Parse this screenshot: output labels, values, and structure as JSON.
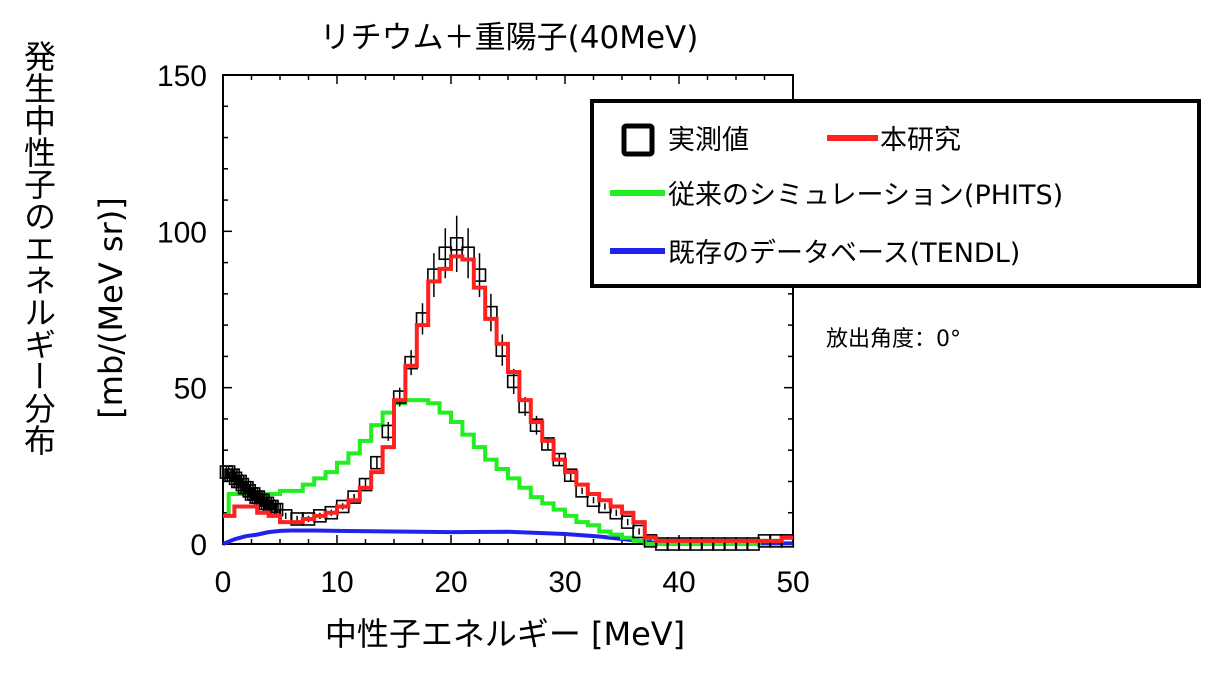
{
  "chart_data": {
    "type": "line",
    "title": "リチウム＋重陽子(40MeV)",
    "xlabel": "中性子エネルギー [MeV]",
    "ylabel_main": "発生中性子のエネルギー分布",
    "ylabel_unit": "[mb/(MeV sr)]",
    "xlim": [
      0,
      50
    ],
    "ylim": [
      0,
      150
    ],
    "x_ticks": [
      0,
      10,
      20,
      30,
      40,
      50
    ],
    "y_ticks": [
      0,
      50,
      100,
      150
    ],
    "x_tick_labels": [
      "0",
      "10",
      "20",
      "30",
      "40",
      "50"
    ],
    "y_tick_labels": [
      "0",
      "50",
      "100",
      "150"
    ],
    "grid": false,
    "legend_position": "top-right",
    "annotation": "放出角度：0°",
    "series": [
      {
        "name": "実測値",
        "kind": "markers",
        "marker": "square",
        "color": "#000000",
        "x": [
          0.3,
          0.5,
          0.7,
          0.9,
          1.1,
          1.3,
          1.5,
          1.7,
          1.9,
          2.1,
          2.3,
          2.5,
          2.7,
          2.9,
          3.1,
          3.3,
          3.5,
          3.7,
          3.9,
          4.1,
          4.3,
          4.5,
          4.7,
          5.5,
          6.5,
          7.5,
          8.5,
          9.5,
          10.5,
          11.5,
          12.5,
          13.5,
          14.5,
          15.5,
          16.5,
          17.5,
          18.5,
          19.5,
          20.5,
          21.5,
          22.5,
          23.5,
          24.5,
          25.5,
          26.5,
          27.5,
          28.5,
          29.5,
          30.5,
          31.5,
          32.5,
          33.5,
          34.5,
          35.5,
          36.5,
          37.5,
          38.5,
          39.5,
          40.5,
          41.5,
          42.5,
          43.5,
          44.5,
          45.5,
          46.5,
          47.5,
          48.5,
          49.5
        ],
        "y": [
          23,
          23,
          22,
          22,
          21,
          20,
          20,
          19,
          18,
          18,
          17,
          16,
          16,
          15,
          15,
          14,
          14,
          13,
          13,
          12,
          12,
          11,
          11,
          9,
          8,
          8,
          9,
          10,
          12,
          15,
          19,
          26,
          36,
          47,
          58,
          72,
          86,
          93,
          96,
          93,
          86,
          74,
          62,
          52,
          44,
          38,
          32,
          27,
          22,
          17,
          14,
          12,
          10,
          7,
          4,
          1,
          0,
          0,
          0,
          0,
          0,
          0,
          0,
          0,
          0,
          1,
          1,
          1
        ],
        "yerr": [
          2,
          2,
          2,
          2,
          2,
          2,
          2,
          2,
          2,
          2,
          2,
          2,
          2,
          2,
          2,
          2,
          2,
          2,
          2,
          2,
          2,
          2,
          2,
          1,
          1,
          1,
          1,
          1,
          1,
          1,
          2,
          2,
          3,
          3,
          4,
          5,
          7,
          8,
          9,
          8,
          7,
          6,
          5,
          4,
          3,
          3,
          2,
          2,
          2,
          1,
          1,
          1,
          1,
          1,
          1,
          0,
          0,
          0,
          0,
          0,
          0,
          0,
          0,
          0,
          0,
          0,
          0,
          0
        ]
      },
      {
        "name": "本研究",
        "kind": "step",
        "color": "#ff2020",
        "edges": [
          0,
          1,
          2,
          3,
          4,
          5,
          6,
          7,
          8,
          9,
          10,
          11,
          12,
          13,
          14,
          15,
          16,
          17,
          18,
          19,
          20,
          21,
          22,
          23,
          24,
          25,
          26,
          27,
          28,
          29,
          30,
          31,
          32,
          33,
          34,
          35,
          36,
          37,
          38,
          39,
          40,
          41,
          42,
          43,
          44,
          45,
          46,
          47,
          48,
          49,
          50
        ],
        "values": [
          9,
          12,
          12,
          10,
          9,
          7,
          7,
          8,
          9,
          10,
          12,
          14,
          18,
          23,
          31,
          46,
          57,
          70,
          84,
          88,
          92,
          91,
          82,
          72,
          64,
          55,
          46,
          39,
          33,
          27,
          23,
          19,
          16,
          14,
          12,
          10,
          7,
          2,
          1,
          1,
          1,
          1,
          1,
          1,
          1,
          1,
          1,
          1,
          1,
          2
        ]
      },
      {
        "name": "従来のシミュレーション(PHITS)",
        "kind": "step",
        "color": "#22ee22",
        "edges": [
          0,
          0.5,
          1,
          2,
          3,
          4,
          5,
          6,
          7,
          8,
          9,
          10,
          11,
          12,
          13,
          14,
          15,
          16,
          17,
          18,
          19,
          20,
          21,
          22,
          23,
          24,
          25,
          26,
          27,
          28,
          29,
          30,
          31,
          32,
          33,
          34,
          35,
          36,
          37,
          38,
          39,
          40,
          41,
          42,
          43,
          44,
          45,
          46,
          47,
          48,
          49,
          50
        ],
        "values": [
          9,
          16,
          16,
          16,
          16,
          16,
          17,
          17,
          19,
          21,
          23,
          26,
          29,
          33,
          38,
          42,
          45,
          46,
          46,
          45,
          42,
          39,
          35,
          31,
          27,
          24,
          21,
          18,
          15,
          13,
          11,
          9,
          7,
          6,
          4,
          3,
          2,
          1,
          0,
          0,
          0,
          0,
          0,
          0,
          0,
          0,
          0,
          0,
          1,
          1,
          2
        ]
      },
      {
        "name": "既存のデータベース(TENDL)",
        "kind": "line",
        "color": "#2222ee",
        "x": [
          0,
          1,
          2,
          3,
          4,
          5,
          6,
          8,
          10,
          15,
          20,
          25,
          30,
          33,
          35,
          37,
          38,
          40,
          45,
          50
        ],
        "y": [
          0,
          1.5,
          2.5,
          3,
          3.8,
          4.2,
          4.3,
          4.3,
          4.2,
          4,
          3.8,
          3.9,
          3.2,
          2.4,
          1.6,
          0.8,
          0.3,
          0.2,
          0.2,
          0.2
        ]
      }
    ]
  },
  "legend": {
    "items": [
      {
        "label": "実測値",
        "color": "#000000",
        "kind": "square"
      },
      {
        "label": "本研究",
        "color": "#ff2020",
        "kind": "line"
      },
      {
        "label": "従来のシミュレーション(PHITS)",
        "color": "#22ee22",
        "kind": "line"
      },
      {
        "label": "既存のデータベース(TENDL)",
        "color": "#2222ee",
        "kind": "line"
      }
    ]
  }
}
